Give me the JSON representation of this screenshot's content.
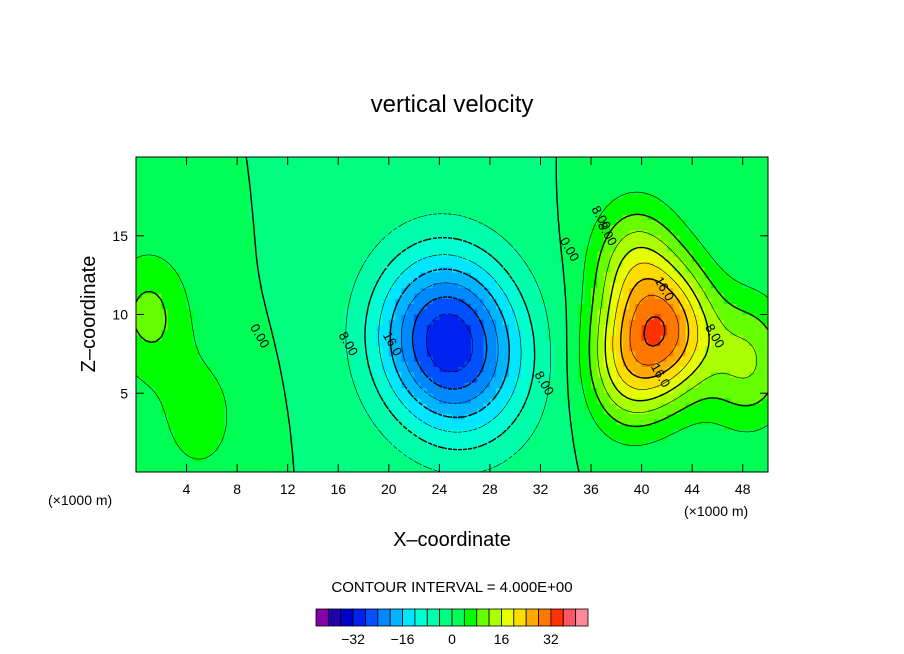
{
  "chart_data": {
    "type": "heatmap",
    "title": "vertical velocity",
    "xlabel": "X–coordinate",
    "ylabel": "Z–coordinate",
    "x_unit": "(×1000 m)",
    "z_unit": "(×1000 m)",
    "xlim": [
      0,
      50
    ],
    "ylim": [
      0,
      20
    ],
    "x_ticks": [
      "4",
      "8",
      "12",
      "16",
      "20",
      "24",
      "28",
      "32",
      "36",
      "40",
      "44",
      "48"
    ],
    "y_ticks": [
      "5",
      "10",
      "15"
    ],
    "contour_interval_text": "CONTOUR INTERVAL = 4.000E+00",
    "contour_interval": 4,
    "contour_labels": [
      {
        "text": "0.00",
        "x": 9.5,
        "z": 8.5
      },
      {
        "text": "8.00",
        "x": 16.5,
        "z": 8.0
      },
      {
        "text": "16.0",
        "x": 20.0,
        "z": 8.0
      },
      {
        "text": "8.00",
        "x": 32.0,
        "z": 5.5
      },
      {
        "text": "0.00",
        "x": 34.0,
        "z": 14.0
      },
      {
        "text": "8.00",
        "x": 37.0,
        "z": 15.0
      },
      {
        "text": "8.00",
        "x": 36.5,
        "z": 16.0
      },
      {
        "text": "16.0",
        "x": 41.5,
        "z": 11.5
      },
      {
        "text": "16.0",
        "x": 41.2,
        "z": 6.0
      },
      {
        "text": "8.00",
        "x": 45.5,
        "z": 8.5
      }
    ],
    "features": [
      {
        "kind": "updraft",
        "x": 42.5,
        "z": 9.0,
        "peak": 22
      },
      {
        "kind": "updraft",
        "x": 39.0,
        "z": 7.0,
        "peak": 18
      },
      {
        "kind": "updraft",
        "x": 39.5,
        "z": 13.0,
        "peak": 14
      },
      {
        "kind": "updraft",
        "x": 48.5,
        "z": 7.0,
        "peak": 12
      },
      {
        "kind": "updraft",
        "x": 1.0,
        "z": 10.0,
        "peak": 9
      },
      {
        "kind": "updraft",
        "x": 5.0,
        "z": 3.5,
        "peak": 6
      },
      {
        "kind": "downdraft",
        "x": 24.0,
        "z": 9.0,
        "peak": -22
      },
      {
        "kind": "downdraft",
        "x": 26.5,
        "z": 6.5,
        "peak": -12
      }
    ],
    "colorbar": {
      "ticks": [
        "−32",
        "−16",
        "0",
        "16",
        "32"
      ],
      "tick_values": [
        -32,
        -16,
        0,
        16,
        32
      ],
      "levels": [
        -44,
        -40,
        -36,
        -32,
        -28,
        -24,
        -20,
        -16,
        -12,
        -8,
        -4,
        0,
        4,
        8,
        12,
        16,
        20,
        24,
        28,
        32,
        36,
        40
      ],
      "colors": [
        "#8800aa",
        "#2200aa",
        "#0000cc",
        "#0022ee",
        "#0050ff",
        "#0088ff",
        "#00b4ff",
        "#00e6ff",
        "#00ffd2",
        "#00ffaa",
        "#00ff80",
        "#00ff55",
        "#00ff00",
        "#66ff00",
        "#aaff00",
        "#e6ff00",
        "#ffdd00",
        "#ffaa00",
        "#ff7700",
        "#ff3300",
        "#ff5566",
        "#ff8899"
      ]
    }
  }
}
